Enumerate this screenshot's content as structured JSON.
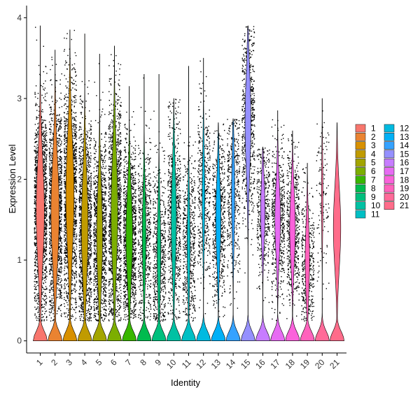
{
  "chart_data": {
    "type": "violin",
    "xlabel": "Identity",
    "ylabel": "Expression Level",
    "ylim": [
      -0.15,
      4.15
    ],
    "yticks": [
      0,
      1,
      2,
      3,
      4
    ],
    "ytick_labels": [
      "0",
      "1",
      "2",
      "3",
      "4"
    ],
    "grid": false,
    "legend_position": "right",
    "legend_columns": 2,
    "categories": [
      "1",
      "2",
      "3",
      "4",
      "5",
      "6",
      "7",
      "8",
      "9",
      "10",
      "11",
      "12",
      "13",
      "14",
      "15",
      "16",
      "17",
      "18",
      "19",
      "20",
      "21"
    ],
    "colors": [
      "#F8766D",
      "#EA8331",
      "#D89000",
      "#C09B00",
      "#A3A500",
      "#7CAE00",
      "#39B600",
      "#00BB4E",
      "#00BF7D",
      "#00C1A3",
      "#00BFC4",
      "#00BAE0",
      "#00B0F6",
      "#35A2FF",
      "#9590FF",
      "#C77CFF",
      "#E76BF3",
      "#FA62DB",
      "#FF62BC",
      "#FF6A98",
      "#FF6C8A"
    ],
    "series": [
      {
        "name": "1",
        "zero_bulge": 0.2,
        "y_max": 3.9,
        "center": 1.6,
        "spread": 0.65,
        "body_width": 0.55,
        "point_density": 1.0
      },
      {
        "name": "2",
        "zero_bulge": 0.22,
        "y_max": 3.6,
        "center": 1.6,
        "spread": 0.65,
        "body_width": 0.55,
        "point_density": 1.0
      },
      {
        "name": "3",
        "zero_bulge": 0.3,
        "y_max": 3.85,
        "center": 1.8,
        "spread": 0.7,
        "body_width": 0.55,
        "point_density": 1.0
      },
      {
        "name": "4",
        "zero_bulge": 0.25,
        "y_max": 3.8,
        "center": 1.4,
        "spread": 0.65,
        "body_width": 0.45,
        "point_density": 0.85
      },
      {
        "name": "5",
        "zero_bulge": 0.22,
        "y_max": 3.55,
        "center": 1.3,
        "spread": 0.6,
        "body_width": 0.4,
        "point_density": 0.8
      },
      {
        "name": "6",
        "zero_bulge": 0.28,
        "y_max": 3.65,
        "center": 1.6,
        "spread": 0.7,
        "body_width": 0.45,
        "point_density": 0.85
      },
      {
        "name": "7",
        "zero_bulge": 0.2,
        "y_max": 3.15,
        "center": 1.3,
        "spread": 0.55,
        "body_width": 0.45,
        "point_density": 0.8
      },
      {
        "name": "8",
        "zero_bulge": 0.35,
        "y_max": 3.3,
        "center": 1.3,
        "spread": 0.55,
        "body_width": 0.25,
        "point_density": 0.4
      },
      {
        "name": "9",
        "zero_bulge": 0.32,
        "y_max": 3.3,
        "center": 1.1,
        "spread": 0.55,
        "body_width": 0.25,
        "point_density": 0.4
      },
      {
        "name": "10",
        "zero_bulge": 0.3,
        "y_max": 3.0,
        "center": 1.5,
        "spread": 0.6,
        "body_width": 0.35,
        "point_density": 0.5
      },
      {
        "name": "11",
        "zero_bulge": 0.35,
        "y_max": 3.4,
        "center": 1.2,
        "spread": 0.55,
        "body_width": 0.2,
        "point_density": 0.35
      },
      {
        "name": "12",
        "zero_bulge": 0.4,
        "y_max": 3.5,
        "center": 1.8,
        "spread": 0.55,
        "body_width": 0.18,
        "point_density": 0.3
      },
      {
        "name": "13",
        "zero_bulge": 0.3,
        "y_max": 2.7,
        "center": 1.5,
        "spread": 0.5,
        "body_width": 0.35,
        "point_density": 0.4
      },
      {
        "name": "14",
        "zero_bulge": 0.35,
        "y_max": 2.75,
        "center": 1.8,
        "spread": 0.55,
        "body_width": 0.22,
        "point_density": 0.3
      },
      {
        "name": "15",
        "zero_bulge": 0.3,
        "y_max": 3.9,
        "center": 2.7,
        "spread": 0.6,
        "body_width": 0.4,
        "point_density": 0.45
      },
      {
        "name": "16",
        "zero_bulge": 0.45,
        "y_max": 2.4,
        "center": 1.6,
        "spread": 0.4,
        "body_width": 0.3,
        "point_density": 0.3
      },
      {
        "name": "17",
        "zero_bulge": 0.3,
        "y_max": 2.85,
        "center": 1.5,
        "spread": 0.45,
        "body_width": 0.38,
        "point_density": 0.4
      },
      {
        "name": "18",
        "zero_bulge": 0.25,
        "y_max": 2.6,
        "center": 1.4,
        "spread": 0.45,
        "body_width": 0.38,
        "point_density": 0.4
      },
      {
        "name": "19",
        "zero_bulge": 0.25,
        "y_max": 2.2,
        "center": 1.0,
        "spread": 0.45,
        "body_width": 0.3,
        "point_density": 0.25
      },
      {
        "name": "20",
        "zero_bulge": 0.45,
        "y_max": 3.0,
        "center": 1.8,
        "spread": 0.5,
        "body_width": 0.1,
        "point_density": 0.08
      },
      {
        "name": "21",
        "zero_bulge": 0.1,
        "y_max": 2.7,
        "center": 1.4,
        "spread": 0.5,
        "body_width": 0.5,
        "point_density": 0.0
      }
    ]
  }
}
